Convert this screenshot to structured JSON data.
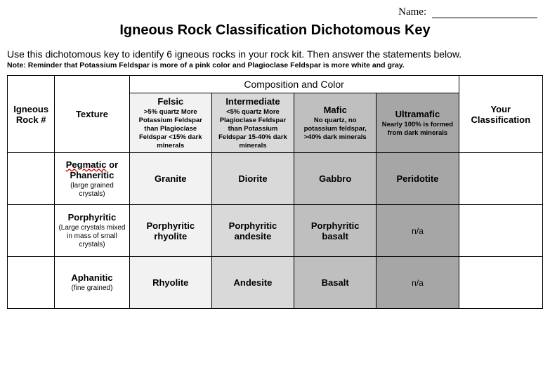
{
  "name_field": {
    "label": "Name:"
  },
  "title": "Igneous Rock Classification Dichotomous Key",
  "intro": "Use this dichotomous key to identify 6 igneous rocks in your rock kit.  Then answer the statements below.",
  "note": "Note: Reminder that Potassium Feldspar is more of a pink color and Plagioclase Feldspar is more white and gray.",
  "colors": {
    "felsic": "#f2f2f2",
    "intermediate": "#d9d9d9",
    "mafic": "#bfbfbf",
    "ultramafic": "#a6a6a6",
    "white": "#ffffff"
  },
  "headers": {
    "composition_title": "Composition and Color",
    "rock_num": "Igneous Rock #",
    "texture": "Texture",
    "your_class": "Your Classification"
  },
  "composition_columns": [
    {
      "key": "felsic",
      "name": "Felsic",
      "desc": ">5% quartz\nMore Potassium Feldspar than Plagioclase Feldspar\n<15% dark minerals"
    },
    {
      "key": "intermediate",
      "name": "Intermediate",
      "desc": "<5% quartz\nMore Plagioclase Feldspar than Potassium Feldspar\n15-40% dark minerals"
    },
    {
      "key": "mafic",
      "name": "Mafic",
      "desc": "No quartz, no potassium feldspar, >40% dark minerals"
    },
    {
      "key": "ultramafic",
      "name": "Ultramafic",
      "desc": "Nearly 100% is formed from dark minerals"
    }
  ],
  "texture_rows": [
    {
      "name": "Pegmatic or Phaneritic",
      "desc": "(large grained crystals)",
      "cells": {
        "felsic": "Granite",
        "intermediate": "Diorite",
        "mafic": "Gabbro",
        "ultramafic": "Peridotite"
      }
    },
    {
      "name": "Porphyritic",
      "desc": "(Large crystals mixed in mass of small crystals)",
      "cells": {
        "felsic": "Porphyritic rhyolite",
        "intermediate": "Porphyritic andesite",
        "mafic": "Porphyritic basalt",
        "ultramafic": "n/a"
      }
    },
    {
      "name": "Aphanitic",
      "desc": "(fine grained)",
      "cells": {
        "felsic": "Rhyolite",
        "intermediate": "Andesite",
        "mafic": "Basalt",
        "ultramafic": "n/a"
      }
    }
  ]
}
